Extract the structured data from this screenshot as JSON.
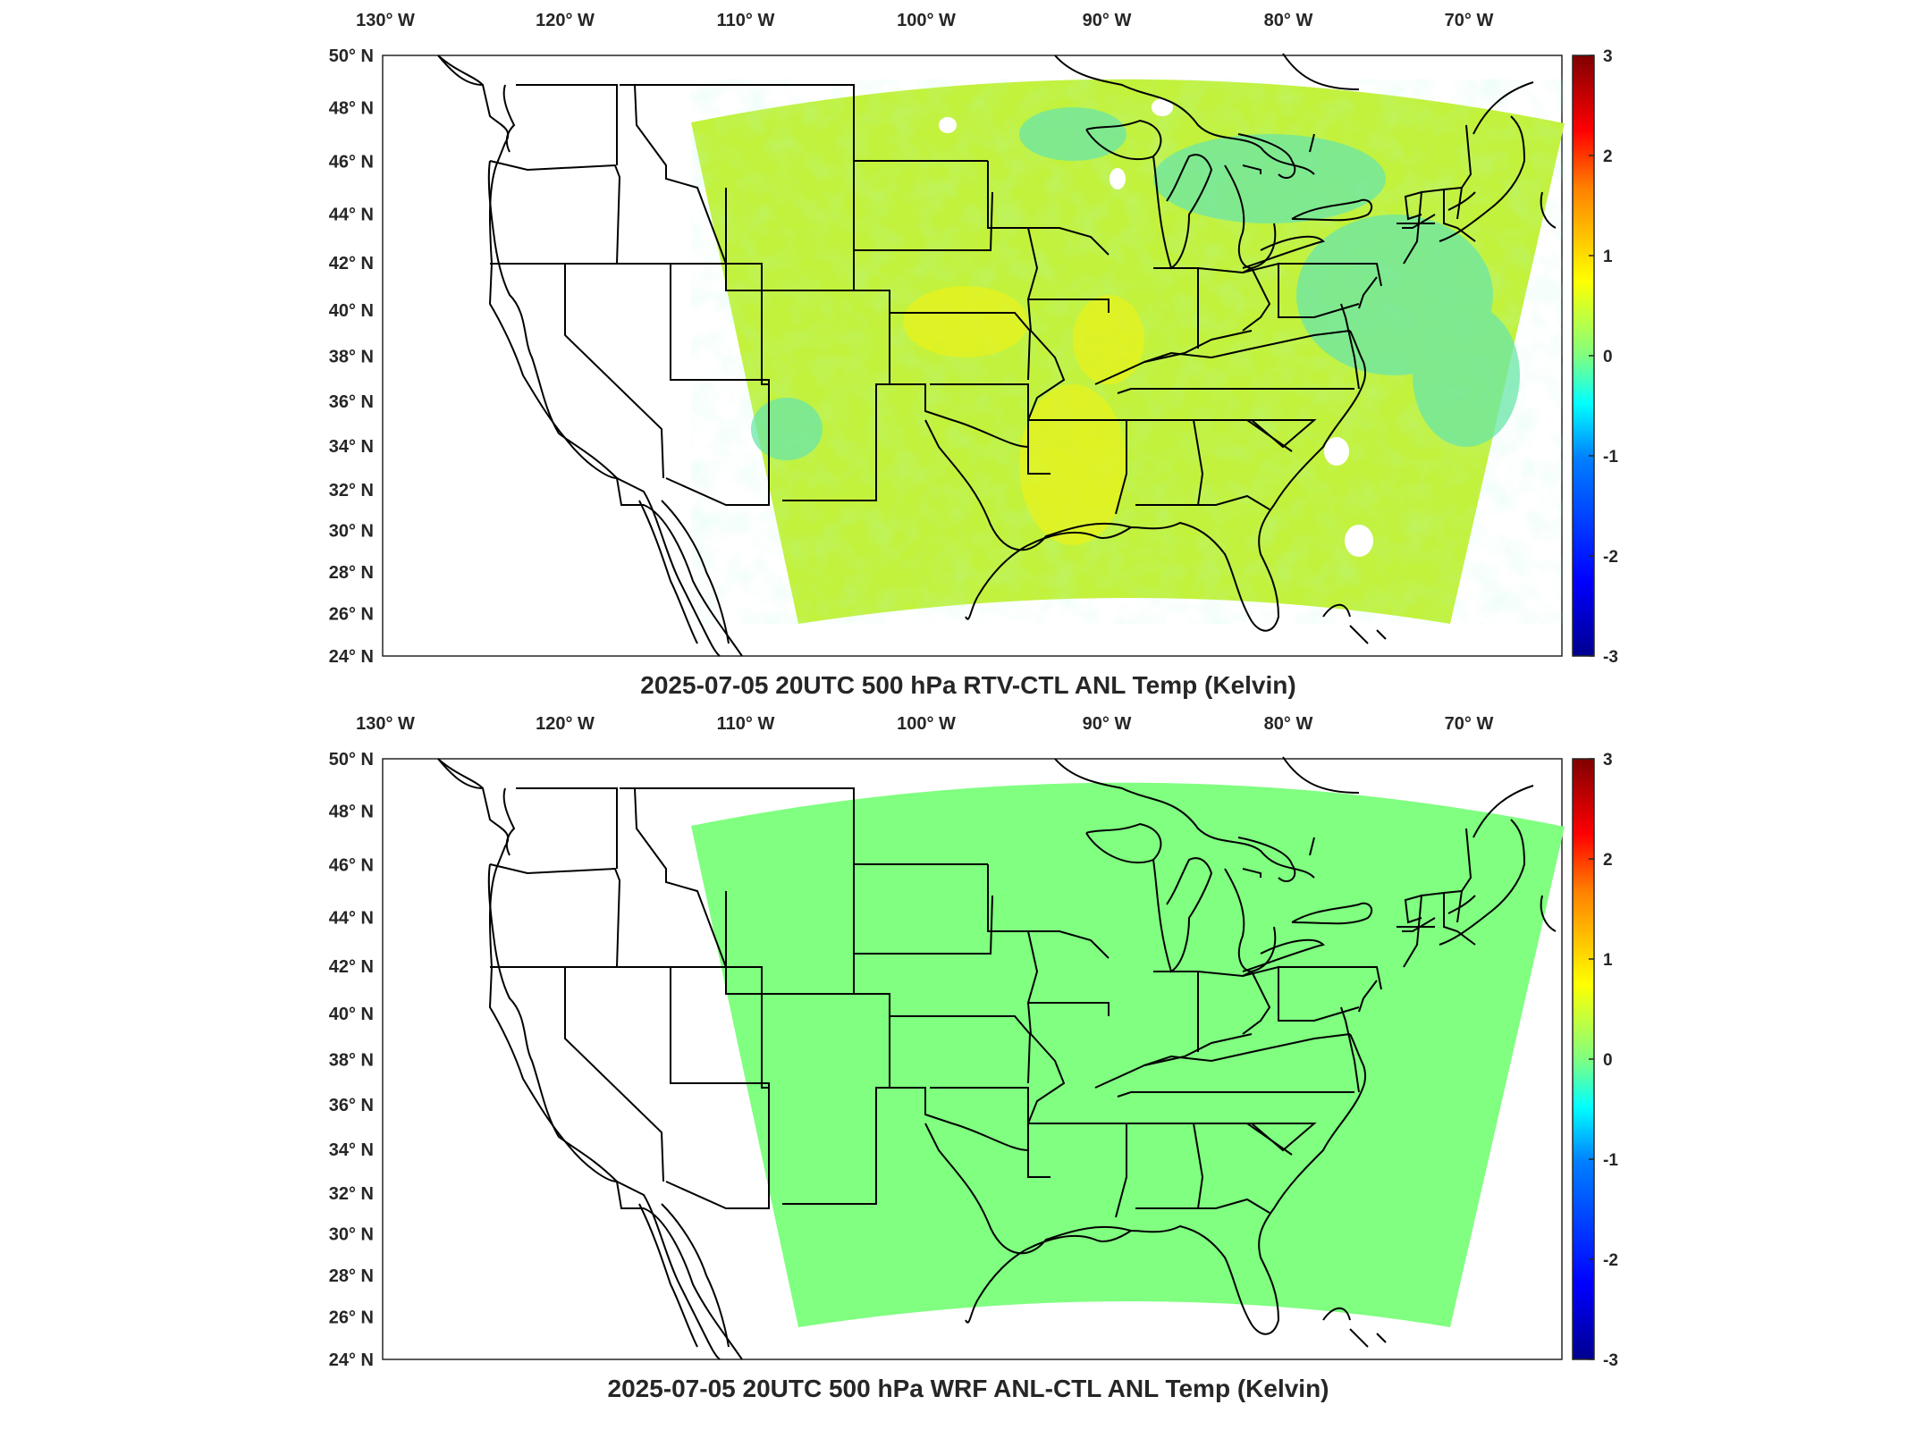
{
  "figure": {
    "panels": [
      {
        "title": "2025-07-05 20UTC 500 hPa RTV-CTL ANL Temp (Kelvin)",
        "field": "mottled",
        "top_labels": [
          "130",
          "120",
          "110",
          "100",
          "90",
          "80",
          "70"
        ],
        "top_suffix": "W",
        "left_labels": [
          "50",
          "48",
          "46",
          "44",
          "42",
          "40",
          "38",
          "36",
          "34",
          "32",
          "30",
          "28",
          "26",
          "24"
        ],
        "left_suffix": "N",
        "colorbar_ticks": [
          "3",
          "2",
          "1",
          "0",
          "-1",
          "-2",
          "-3"
        ]
      },
      {
        "title": "2025-07-05 20UTC 500 hPa WRF ANL-CTL ANL Temp (Kelvin)",
        "field": "uniform",
        "top_labels": [
          "130",
          "120",
          "110",
          "100",
          "90",
          "80",
          "70"
        ],
        "top_suffix": "W",
        "left_labels": [
          "50",
          "48",
          "46",
          "44",
          "42",
          "40",
          "38",
          "36",
          "34",
          "32",
          "30",
          "28",
          "26",
          "24"
        ],
        "left_suffix": "N",
        "colorbar_ticks": [
          "3",
          "2",
          "1",
          "0",
          "-1",
          "-2",
          "-3"
        ]
      }
    ],
    "colormap": [
      "#00008f",
      "#0000ff",
      "#0080ff",
      "#00ffff",
      "#80ff80",
      "#ffff00",
      "#ff8000",
      "#ff0000",
      "#800000"
    ],
    "uniform_color": "#80ff80",
    "mottled_colors": [
      "#bff43c",
      "#a8f050",
      "#d6f626",
      "#e8f018",
      "#8ff070",
      "#60f0b0",
      "#c8f432"
    ]
  }
}
